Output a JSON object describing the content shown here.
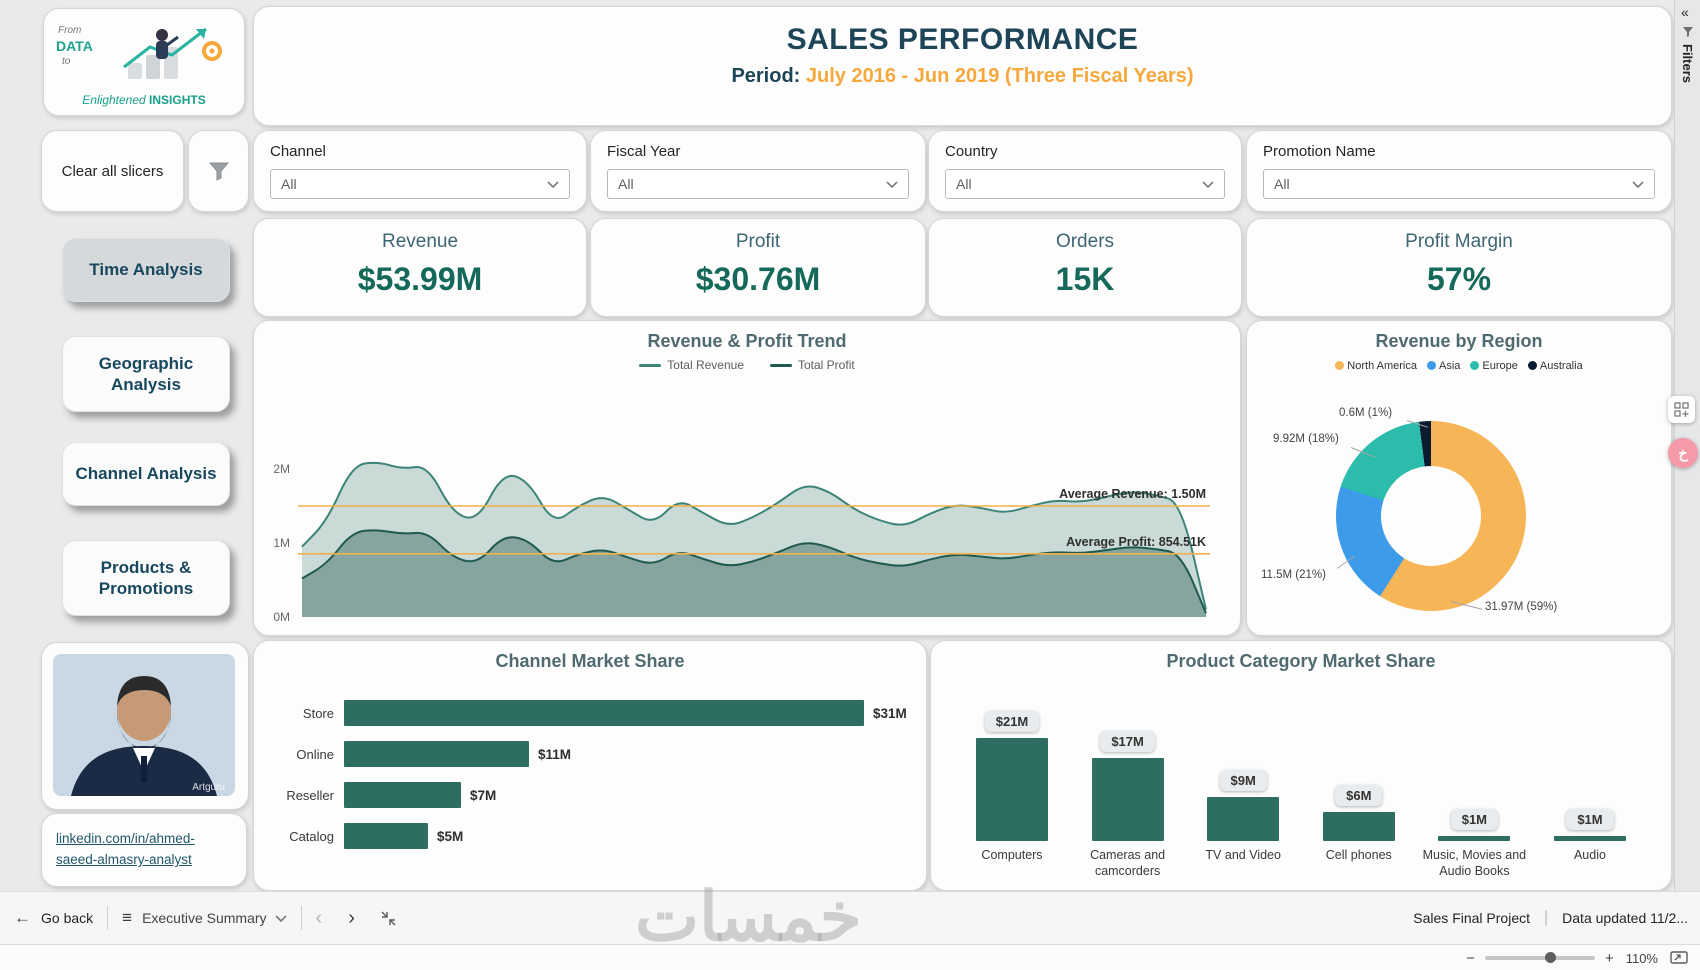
{
  "app": {
    "filters_panel_title": "Filters",
    "collapse_glyph": "«"
  },
  "logo": {
    "word_from": "From",
    "word_data": "DATA",
    "word_to": "to",
    "brand_left": "Enlightened",
    "brand_right": "INSIGHTS"
  },
  "header": {
    "title": "SALES PERFORMANCE",
    "period_label": "Period:",
    "period_value": "July 2016 - Jun 2019  (Three Fiscal Years)"
  },
  "slicers": {
    "clear_label": "Clear all slicers",
    "items": [
      {
        "label": "Channel",
        "value": "All"
      },
      {
        "label": "Fiscal Year",
        "value": "All"
      },
      {
        "label": "Country",
        "value": "All"
      },
      {
        "label": "Promotion Name",
        "value": "All"
      }
    ]
  },
  "nav": {
    "items": [
      {
        "label": "Time Analysis"
      },
      {
        "label": "Geographic Analysis"
      },
      {
        "label": "Channel Analysis"
      },
      {
        "label": "Products & Promotions"
      }
    ]
  },
  "kpis": [
    {
      "label": "Revenue",
      "value": "$53.99M"
    },
    {
      "label": "Profit",
      "value": "$30.76M"
    },
    {
      "label": "Orders",
      "value": "15K"
    },
    {
      "label": "Profit Margin",
      "value": "57%"
    }
  ],
  "profile": {
    "watermark": "Artguru",
    "link_line": "linkedin.com/in/ahmed-saeed-almasry-analyst"
  },
  "bottom_bar": {
    "go_back": "Go back",
    "page_name": "Executive Summary",
    "project": "Sales Final Project",
    "divider": "|",
    "data_updated": "Data updated 11/2..."
  },
  "zoom_bar": {
    "minus": "−",
    "plus": "+",
    "level": "110%"
  },
  "watermark": {
    "text": "خمسات"
  },
  "chart_data": [
    {
      "type": "area",
      "title": "Revenue & Profit Trend",
      "x_axis": {
        "visible": false,
        "range_note": "monthly Jul 2016 - Jun 2019"
      },
      "yticks": [
        "0M",
        "1M",
        "2M"
      ],
      "ylim": [
        0,
        2.35
      ],
      "avg_line_color": "#f3b04c",
      "series": [
        {
          "name": "Total Revenue",
          "color": "#3c8478",
          "fill": "rgba(70,128,118,0.28)",
          "values": [
            0.95,
            1.3,
            2.05,
            2.1,
            2.0,
            2.05,
            1.4,
            1.3,
            1.95,
            1.85,
            1.25,
            1.5,
            1.65,
            1.45,
            1.25,
            1.6,
            1.4,
            1.22,
            1.35,
            1.55,
            1.8,
            1.7,
            1.45,
            1.3,
            1.22,
            1.4,
            1.52,
            1.48,
            1.4,
            1.5,
            1.58,
            1.55,
            1.62,
            1.7,
            1.65,
            1.55,
            0.1
          ]
        },
        {
          "name": "Total Profit",
          "color": "#1e5a4f",
          "fill": "rgba(45,94,84,0.42)",
          "values": [
            0.52,
            0.72,
            1.15,
            1.18,
            1.12,
            1.15,
            0.8,
            0.72,
            1.1,
            1.05,
            0.7,
            0.85,
            0.92,
            0.8,
            0.7,
            0.9,
            0.78,
            0.68,
            0.75,
            0.88,
            1.02,
            0.95,
            0.8,
            0.72,
            0.68,
            0.78,
            0.85,
            0.82,
            0.78,
            0.84,
            0.88,
            0.86,
            0.9,
            0.95,
            0.92,
            0.86,
            0.05
          ]
        }
      ],
      "annotations": [
        {
          "label": "Average Revenue: 1.50M",
          "value": 1.5
        },
        {
          "label": "Average Profit: 854.51K",
          "value": 0.85451
        }
      ]
    },
    {
      "type": "pie",
      "title": "Revenue by Region",
      "legend_position": "top",
      "slices": [
        {
          "name": "North America",
          "value": 31.97,
          "pct": 59,
          "label": "31.97M (59%)",
          "color": "#f6b556"
        },
        {
          "name": "Asia",
          "value": 11.5,
          "pct": 21,
          "label": "11.5M (21%)",
          "color": "#3d9be9"
        },
        {
          "name": "Europe",
          "value": 9.92,
          "pct": 18,
          "label": "9.92M (18%)",
          "color": "#2bbcab"
        },
        {
          "name": "Australia",
          "value": 0.6,
          "pct": 1,
          "label": "0.6M (1%)",
          "color": "#0a1a2f"
        }
      ]
    },
    {
      "type": "bar",
      "orientation": "horizontal",
      "title": "Channel Market Share",
      "categories": [
        "Store",
        "Online",
        "Reseller",
        "Catalog"
      ],
      "values": [
        31,
        11,
        7,
        5
      ],
      "labels": [
        "$31M",
        "$11M",
        "$7M",
        "$5M"
      ],
      "bar_color": "#2e6e62",
      "xlim": [
        0,
        34
      ]
    },
    {
      "type": "bar",
      "orientation": "vertical",
      "title": "Product Category Market Share",
      "categories": [
        "Computers",
        "Cameras and camcorders",
        "TV and Video",
        "Cell phones",
        "Music, Movies and Audio Books",
        "Audio"
      ],
      "values": [
        21,
        17,
        9,
        6,
        1,
        1
      ],
      "labels": [
        "$21M",
        "$17M",
        "$9M",
        "$6M",
        "$1M",
        "$1M"
      ],
      "bar_color": "#2e6e62",
      "ylim": [
        0,
        22
      ]
    }
  ]
}
